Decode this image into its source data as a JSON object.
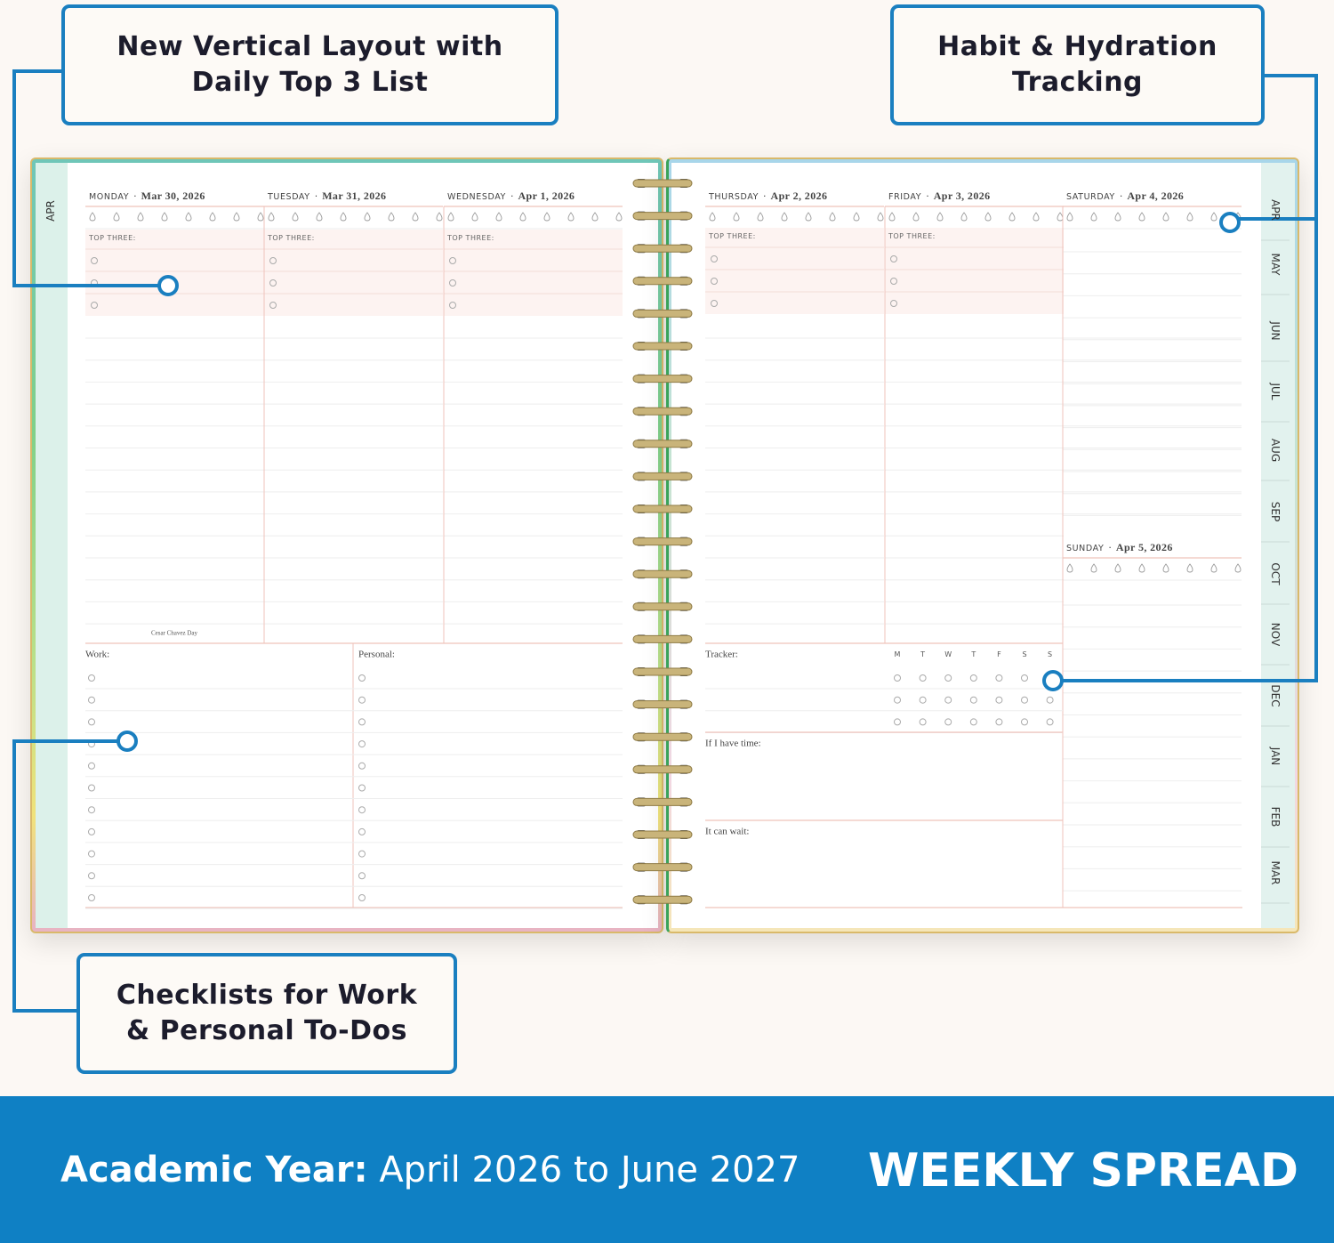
{
  "callouts": [
    {
      "lines": [
        "New Vertical Layout with",
        "Daily Top 3 List"
      ]
    },
    {
      "lines": [
        "Habit & Hydration",
        "Tracking"
      ]
    },
    {
      "lines": [
        "Checklists for Work",
        "& Personal To-Dos"
      ]
    }
  ],
  "planner": {
    "separator": "·",
    "days": [
      {
        "name": "MONDAY",
        "date": "Mar 30, 2026"
      },
      {
        "name": "TUESDAY",
        "date": "Mar 31, 2026"
      },
      {
        "name": "WEDNESDAY",
        "date": "Apr 1, 2026"
      },
      {
        "name": "THURSDAY",
        "date": "Apr 2, 2026"
      },
      {
        "name": "FRIDAY",
        "date": "Apr 3, 2026"
      },
      {
        "name": "SATURDAY",
        "date": "Apr 4, 2026"
      },
      {
        "name": "SUNDAY",
        "date": "Apr 5, 2026"
      }
    ],
    "top_three": "TOP THREE:",
    "holiday": "Cesar Chavez Day",
    "work": "Work:",
    "personal": "Personal:",
    "tracker": "Tracker:",
    "tracker_days": [
      "M",
      "T",
      "W",
      "T",
      "F",
      "S",
      "S"
    ],
    "if_time": "If I have time:",
    "can_wait": "It can wait:",
    "left_tab": "APR",
    "tabs": [
      "APR",
      "MAY",
      "JUN",
      "JUL",
      "AUG",
      "SEP",
      "OCT",
      "NOV",
      "DEC",
      "JAN",
      "FEB",
      "MAR"
    ]
  },
  "footer": {
    "label": "Academic Year:",
    "range": "April 2026 to June 2027",
    "title": "WEEKLY SPREAD"
  }
}
